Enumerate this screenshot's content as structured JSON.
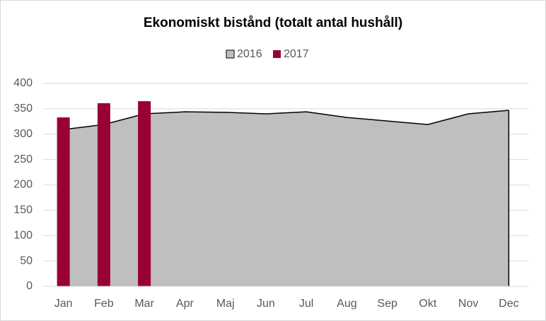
{
  "chart_data": {
    "type": "combo",
    "title": "Ekonomiskt bistånd (totalt antal hushåll)",
    "categories": [
      "Jan",
      "Feb",
      "Mar",
      "Apr",
      "Maj",
      "Jun",
      "Jul",
      "Aug",
      "Sep",
      "Okt",
      "Nov",
      "Dec"
    ],
    "series": [
      {
        "name": "2016",
        "type": "area",
        "color": "#bfbfbf",
        "values": [
          309,
          319,
          340,
          344,
          343,
          340,
          344,
          333,
          326,
          319,
          340,
          347
        ]
      },
      {
        "name": "2017",
        "type": "bar",
        "color": "#990033",
        "values": [
          333,
          361,
          365,
          null,
          null,
          null,
          null,
          null,
          null,
          null,
          null,
          null
        ]
      }
    ],
    "ylim": [
      0,
      400
    ],
    "yticks": [
      0,
      50,
      100,
      150,
      200,
      250,
      300,
      350,
      400
    ],
    "grid": true,
    "legend": "top"
  }
}
